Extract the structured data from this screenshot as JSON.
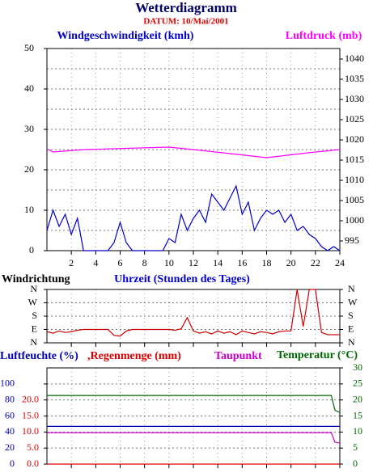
{
  "chart_data": [
    {
      "type": "line",
      "title": "Wetterdiagramm",
      "subtitle": "DATUM: 10/Mai/2001",
      "x_label": "Uhrzeit (Stunden des Tages)",
      "xlim": [
        0,
        24
      ],
      "xticks": [
        2,
        4,
        6,
        8,
        10,
        12,
        14,
        16,
        18,
        20,
        22,
        24
      ],
      "ylim": [
        0,
        50
      ],
      "yticks": [
        0,
        10,
        20,
        30,
        40,
        50
      ],
      "minor_yticks": [
        5,
        15,
        25,
        35,
        45
      ],
      "y2lim": [
        992.6,
        1042.6
      ],
      "y2ticks": [
        995,
        1000,
        1005,
        1010,
        1015,
        1020,
        1025,
        1030,
        1035,
        1040
      ],
      "grid": true,
      "series": [
        {
          "name": "Windgeschwindigkeit (kmh)",
          "color": "#0000cc",
          "x": [
            0,
            0.5,
            1,
            1.5,
            2,
            2.5,
            3,
            3.5,
            4,
            4.5,
            5,
            5.5,
            6,
            6.5,
            7,
            7.5,
            8,
            8.5,
            9,
            9.5,
            10,
            10.5,
            11,
            11.5,
            12,
            12.5,
            13,
            13.5,
            14,
            14.5,
            15,
            15.5,
            16,
            16.5,
            17,
            17.5,
            18,
            18.5,
            19,
            19.5,
            20,
            20.5,
            21,
            21.5,
            22,
            22.5,
            23,
            23.5,
            24
          ],
          "values": [
            5,
            10,
            6,
            9,
            4,
            8,
            0,
            0,
            0,
            0,
            0,
            2,
            7,
            2,
            0,
            0,
            0,
            0,
            0,
            0,
            3,
            2,
            9,
            5,
            8,
            10,
            7,
            14,
            12,
            10,
            13,
            16,
            9,
            12,
            5,
            8,
            10,
            9,
            10,
            7,
            9,
            5,
            6,
            4,
            3,
            1,
            0,
            1,
            0
          ]
        },
        {
          "name": "Luftdruck (mb)",
          "color": "#ff00ff",
          "axis": "y2",
          "x": [
            0,
            0.5,
            3,
            10,
            12,
            18,
            22,
            24
          ],
          "values": [
            1017.8,
            1017,
            1017.6,
            1018.2,
            1017.6,
            1015.6,
            1017,
            1017.6
          ]
        }
      ]
    },
    {
      "type": "line",
      "xlim": [
        0,
        24
      ],
      "ylim": [
        0,
        360
      ],
      "yticks": [
        {
          "value": 0,
          "label": "N"
        },
        {
          "value": 90,
          "label": "E"
        },
        {
          "value": 180,
          "label": "S"
        },
        {
          "value": 270,
          "label": "W"
        },
        {
          "value": 360,
          "label": "N"
        }
      ],
      "grid": true,
      "series": [
        {
          "name": "Windrichtung",
          "color": "#cc0000",
          "x": [
            0,
            0.5,
            1,
            1.5,
            2,
            2.5,
            3,
            3.5,
            4,
            4.5,
            5,
            5.5,
            6,
            6.5,
            7,
            7.5,
            8,
            8.5,
            9,
            9.5,
            10,
            10.5,
            11,
            11.5,
            12,
            12.5,
            13,
            13.5,
            14,
            14.5,
            15,
            15.5,
            16,
            16.5,
            17,
            17.5,
            18,
            18.5,
            19,
            19.5,
            20,
            20.5,
            21,
            21.5,
            22,
            22.5,
            23,
            23.5,
            24
          ],
          "values": [
            75,
            65,
            80,
            70,
            75,
            85,
            90,
            90,
            90,
            90,
            90,
            50,
            45,
            80,
            90,
            90,
            90,
            90,
            90,
            90,
            90,
            85,
            95,
            170,
            80,
            65,
            75,
            60,
            80,
            65,
            75,
            55,
            80,
            70,
            60,
            75,
            70,
            60,
            75,
            80,
            80,
            360,
            110,
            360,
            360,
            70,
            55,
            55,
            55
          ]
        }
      ]
    },
    {
      "type": "line",
      "xlim": [
        0,
        24
      ],
      "ylim": [
        0,
        120
      ],
      "yticks": [
        0,
        20,
        40,
        60,
        80,
        100
      ],
      "y3lim": [
        0,
        30
      ],
      "y3ticks": [
        {
          "value": 0,
          "label": "0.0"
        },
        {
          "value": 5,
          "label": "5.0"
        },
        {
          "value": 10,
          "label": "10.0"
        },
        {
          "value": 15,
          "label": "15.0"
        },
        {
          "value": 20,
          "label": "20.0"
        }
      ],
      "y2lim": [
        0,
        30
      ],
      "y2ticks": [
        0,
        5,
        10,
        15,
        20,
        25,
        30
      ],
      "grid": true,
      "series": [
        {
          "name": "Luftfeuchte (%)",
          "color": "#0000aa",
          "x": [
            0,
            24
          ],
          "values": [
            47,
            47
          ]
        },
        {
          "name": ",Regenmenge (mm)",
          "color": "#dd0000",
          "axis": "y3",
          "x": [
            0,
            24
          ],
          "values": [
            0,
            0
          ]
        },
        {
          "name": "Taupunkt",
          "color": "#cc00cc",
          "axis": "y2",
          "x": [
            0,
            23.3,
            23.6,
            24
          ],
          "values": [
            9.8,
            9.8,
            6.8,
            6.6
          ]
        },
        {
          "name": "Temperatur (°C)",
          "color": "#006600",
          "axis": "y2",
          "x": [
            0,
            23.3,
            23.6,
            24
          ],
          "values": [
            21.4,
            21.4,
            16.8,
            16.1
          ]
        }
      ]
    }
  ]
}
